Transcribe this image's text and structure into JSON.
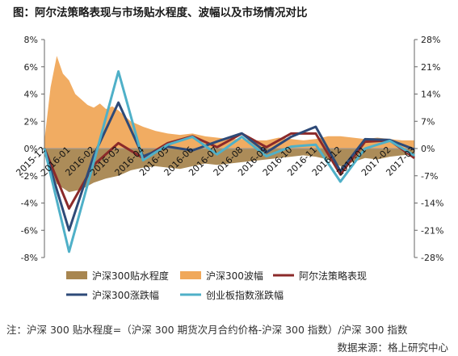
{
  "title": "图：阿尔法策略表现与市场贴水程度、波幅以及市场情况对比",
  "note": "注：沪深 300 贴水程度=（沪深 300 期货次月合约价格-沪深 300 指数）/沪深 300 指数",
  "source": "数据来源：格上研究中心",
  "colors": {
    "discount": "#a88650",
    "volatility": "#f0a85a",
    "alpha": "#8b2a2a",
    "hs300": "#2e4a78",
    "gem": "#4fb0c8",
    "axis": "#666666",
    "zero_line": "#999999"
  },
  "chart_data": {
    "type": "area-line-combo",
    "title": "图：阿尔法策略表现与市场贴水程度、波幅以及市场情况对比",
    "x_categories": [
      "2015-12",
      "2016-01",
      "2016-02",
      "2016-03",
      "2016-04",
      "2016-05",
      "2016-06",
      "2016-07",
      "2016-08",
      "2016-09",
      "2016-10",
      "2016-11",
      "2016-12",
      "2017-01",
      "2017-02",
      "2017-03"
    ],
    "left_axis": {
      "min": -8,
      "max": 8,
      "unit": "%",
      "ticks": [
        "8%",
        "6%",
        "4%",
        "2%",
        "0%",
        "-2%",
        "-4%",
        "-6%",
        "-8%"
      ]
    },
    "right_axis": {
      "min": -28,
      "max": 28,
      "unit": "%",
      "ticks": [
        "28%",
        "21%",
        "14%",
        "7%",
        "0%",
        "-7%",
        "-14%",
        "-21%",
        "-28%"
      ]
    },
    "series": [
      {
        "name": "沪深300贴水程度",
        "kind": "area",
        "axis": "left",
        "color_key": "discount",
        "x_pos": [
          0,
          0.5,
          1,
          1.5,
          2,
          2.5,
          3,
          3.5,
          4,
          4.5,
          5,
          5.5,
          6,
          6.5,
          7,
          7.5,
          8,
          8.5,
          9,
          9.5,
          10,
          10.5,
          11,
          11.5,
          12,
          12.5,
          13,
          13.5,
          14,
          14.5,
          15
        ],
        "values": [
          -0.5,
          -2.6,
          -3.2,
          -3.0,
          -2.5,
          -2.2,
          -2.0,
          -1.6,
          -1.4,
          -1.3,
          -1.4,
          -1.5,
          -1.3,
          -1.1,
          -1.2,
          -1.1,
          -1.0,
          -0.9,
          -0.8,
          -0.7,
          -0.6,
          -0.5,
          -0.6,
          -0.8,
          -1.3,
          -1.0,
          -0.7,
          -0.8,
          -0.6,
          -0.5,
          -0.4
        ]
      },
      {
        "name": "沪深300波幅",
        "kind": "area",
        "axis": "left",
        "color_key": "volatility",
        "x_pos": [
          0,
          0.25,
          0.5,
          0.75,
          1,
          1.25,
          1.5,
          1.75,
          2,
          2.25,
          2.5,
          2.75,
          3,
          3.25,
          3.5,
          3.75,
          4,
          4.5,
          5,
          5.5,
          6,
          6.5,
          7,
          7.5,
          8,
          8.5,
          9,
          9.5,
          10,
          10.5,
          11,
          11.5,
          12,
          12.5,
          13,
          13.5,
          14,
          14.5,
          15
        ],
        "values": [
          0.6,
          4.5,
          6.8,
          5.5,
          5.0,
          4.0,
          3.6,
          3.2,
          3.0,
          3.3,
          2.9,
          3.1,
          2.8,
          2.4,
          2.0,
          1.8,
          1.6,
          1.3,
          1.1,
          1.0,
          1.1,
          0.9,
          0.8,
          0.7,
          0.7,
          0.6,
          0.6,
          0.8,
          0.7,
          0.6,
          0.7,
          0.9,
          0.9,
          0.8,
          0.7,
          0.8,
          0.7,
          0.6,
          0.6
        ]
      },
      {
        "name": "阿尔法策略表现",
        "kind": "line",
        "axis": "left",
        "color_key": "alpha",
        "values": [
          0.0,
          -4.4,
          -1.2,
          0.4,
          -0.7,
          0.4,
          0.9,
          0.1,
          1.1,
          0.1,
          1.1,
          1.1,
          -1.9,
          0.5,
          0.6,
          -0.7
        ]
      },
      {
        "name": "沪深300涨跌幅",
        "kind": "line",
        "axis": "right",
        "color_key": "hs300",
        "values": [
          0.0,
          -21.0,
          -1.8,
          11.8,
          -2.0,
          0.5,
          -0.5,
          1.8,
          3.9,
          -1.0,
          3.0,
          5.6,
          -5.8,
          2.4,
          2.2,
          -0.2
        ]
      },
      {
        "name": "创业板指数涨跌幅",
        "kind": "line",
        "axis": "right",
        "color_key": "gem",
        "values": [
          0.0,
          -26.5,
          -3.5,
          19.8,
          -3.0,
          1.0,
          3.0,
          -1.5,
          3.0,
          -2.0,
          0.5,
          1.0,
          -8.5,
          0.0,
          2.0,
          -1.8
        ]
      }
    ],
    "legend": {
      "placement": "bottom",
      "items": [
        {
          "label": "沪深300贴水程度",
          "shape": "rect",
          "color_key": "discount"
        },
        {
          "label": "沪深300波幅",
          "shape": "rect",
          "color_key": "volatility"
        },
        {
          "label": "阿尔法策略表现",
          "shape": "line",
          "color_key": "alpha"
        },
        {
          "label": "沪深300涨跌幅",
          "shape": "line",
          "color_key": "hs300"
        },
        {
          "label": "创业板指数涨跌幅",
          "shape": "line",
          "color_key": "gem"
        }
      ]
    },
    "grid": false
  }
}
